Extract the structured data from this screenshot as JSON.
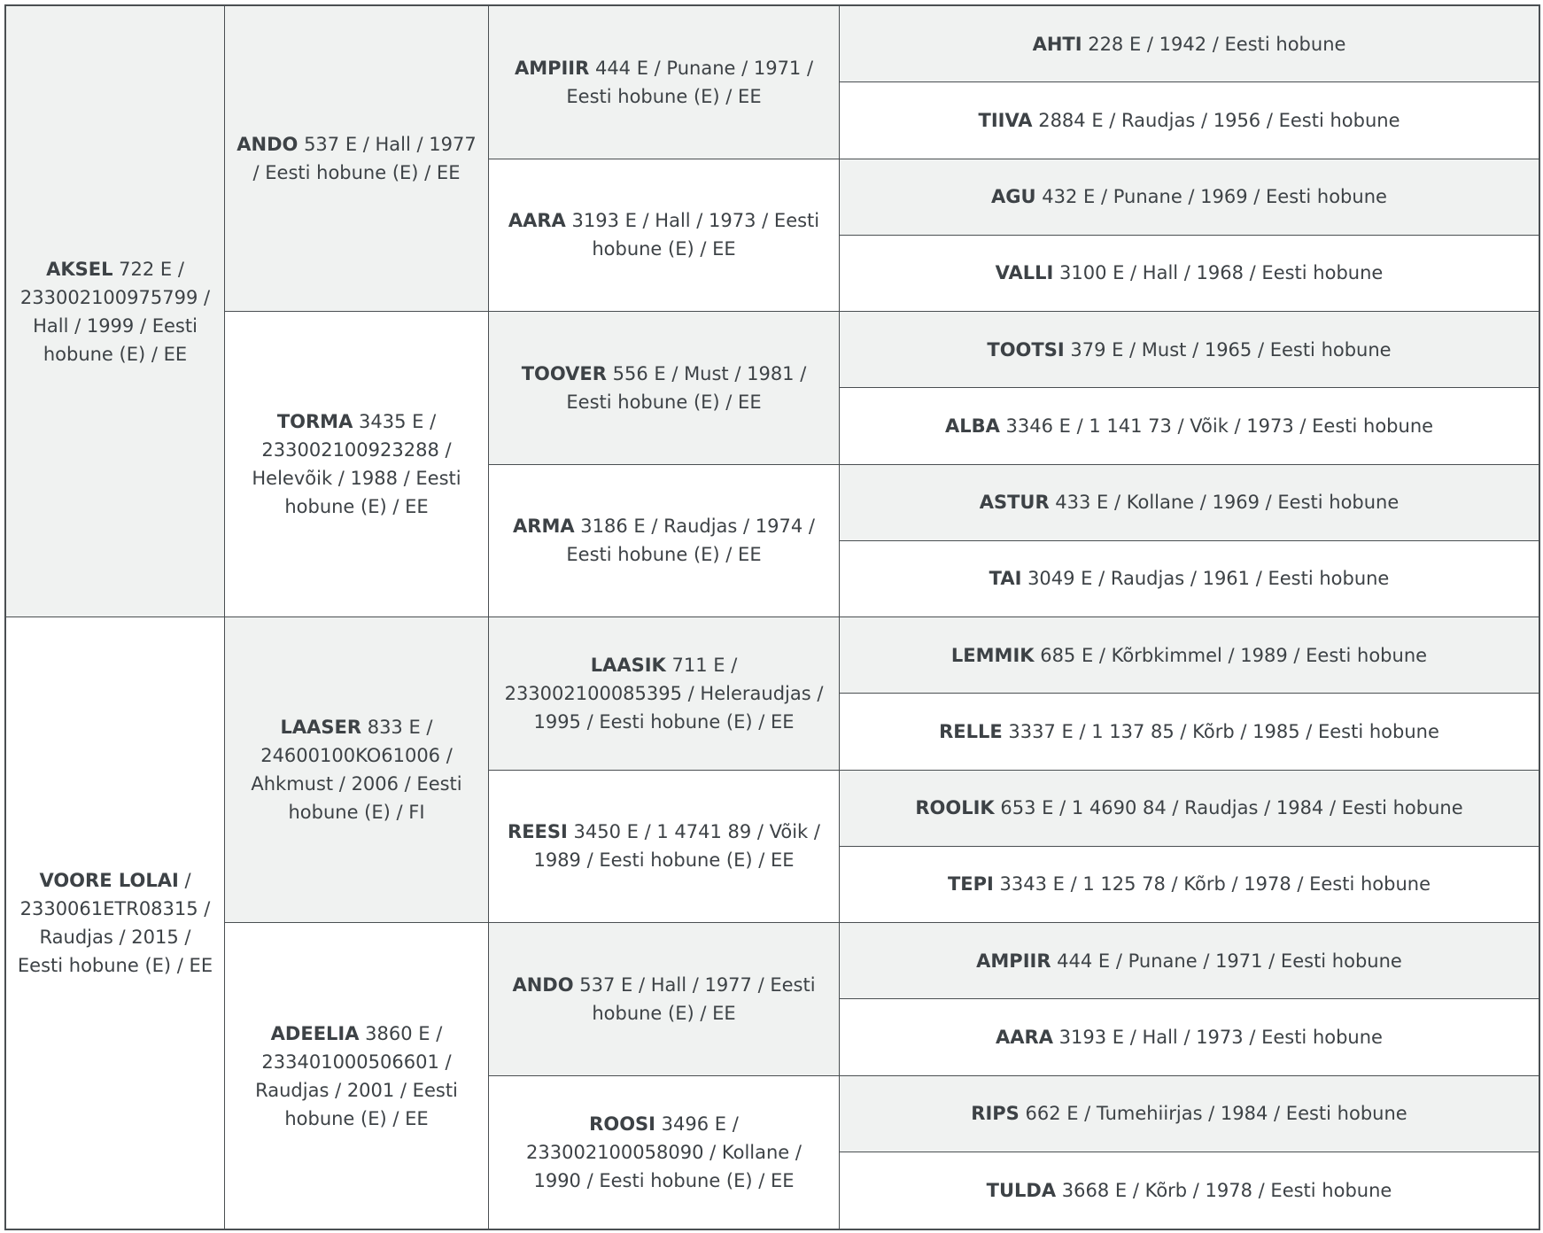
{
  "pedigree": {
    "gen1": [
      {
        "name": "AKSEL",
        "info": " 722 E / 233002100975799 / Hall / 1999 / Eesti hobune (E) / EE"
      },
      {
        "name": "VOORE LOLAI",
        "info": " / 2330061ETR08315 / Raudjas / 2015 / Eesti hobune (E) / EE"
      }
    ],
    "gen2": [
      {
        "name": "ANDO",
        "info": " 537 E / Hall / 1977 / Eesti hobune (E) / EE"
      },
      {
        "name": "TORMA",
        "info": " 3435 E / 233002100923288 / Helevõik / 1988 / Eesti hobune (E) / EE"
      },
      {
        "name": "LAASER",
        "info": " 833 E / 24600100KO61006 / Ahkmust / 2006 / Eesti hobune (E) / FI"
      },
      {
        "name": "ADEELIA",
        "info": " 3860 E / 233401000506601 / Raudjas / 2001 / Eesti hobune (E) / EE"
      }
    ],
    "gen3": [
      {
        "name": "AMPIIR",
        "info": " 444 E / Punane / 1971 / Eesti hobune (E) / EE"
      },
      {
        "name": "AARA",
        "info": " 3193 E / Hall / 1973 / Eesti hobune (E) / EE"
      },
      {
        "name": "TOOVER",
        "info": " 556 E / Must / 1981 / Eesti hobune (E) / EE"
      },
      {
        "name": "ARMA",
        "info": " 3186 E / Raudjas / 1974 / Eesti hobune (E) / EE"
      },
      {
        "name": "LAASIK",
        "info": " 711 E / 233002100085395 / Heleraudjas / 1995 / Eesti hobune (E) / EE"
      },
      {
        "name": "REESI",
        "info": " 3450 E / 1 4741 89 / Võik / 1989 / Eesti hobune (E) / EE"
      },
      {
        "name": "ANDO",
        "info": " 537 E / Hall / 1977 / Eesti hobune (E) / EE"
      },
      {
        "name": "ROOSI",
        "info": " 3496 E / 233002100058090 / Kollane / 1990 / Eesti hobune (E) / EE"
      }
    ],
    "gen4": [
      {
        "name": "AHTI",
        "info": " 228 E / 1942 / Eesti hobune"
      },
      {
        "name": "TIIVA",
        "info": " 2884 E / Raudjas / 1956 / Eesti hobune"
      },
      {
        "name": "AGU",
        "info": " 432 E / Punane / 1969 / Eesti hobune"
      },
      {
        "name": "VALLI",
        "info": " 3100 E / Hall / 1968 / Eesti hobune"
      },
      {
        "name": "TOOTSI",
        "info": " 379 E / Must / 1965 / Eesti hobune"
      },
      {
        "name": "ALBA",
        "info": " 3346 E / 1 141 73 / Võik / 1973 / Eesti hobune"
      },
      {
        "name": "ASTUR",
        "info": " 433 E / Kollane / 1969 / Eesti hobune"
      },
      {
        "name": "TAI",
        "info": " 3049 E / Raudjas / 1961 / Eesti hobune"
      },
      {
        "name": "LEMMIK",
        "info": " 685 E / Kõrbkimmel / 1989 / Eesti hobune"
      },
      {
        "name": "RELLE",
        "info": " 3337 E / 1 137 85 / Kõrb / 1985 / Eesti hobune"
      },
      {
        "name": "ROOLIK",
        "info": " 653 E / 1 4690 84 / Raudjas / 1984 / Eesti hobune"
      },
      {
        "name": "TEPI",
        "info": " 3343 E / 1 125 78 / Kõrb / 1978 / Eesti hobune"
      },
      {
        "name": "AMPIIR",
        "info": " 444 E / Punane / 1971 / Eesti hobune"
      },
      {
        "name": "AARA",
        "info": " 3193 E / Hall / 1973 / Eesti hobune"
      },
      {
        "name": "RIPS",
        "info": " 662 E / Tumehiirjas / 1984 / Eesti hobune"
      },
      {
        "name": "TULDA",
        "info": " 3668 E / Kõrb / 1978 / Eesti hobune"
      }
    ]
  },
  "colors": {
    "shaded": "#f0f2f1",
    "border": "#4a4f52",
    "text": "#3d4246"
  }
}
